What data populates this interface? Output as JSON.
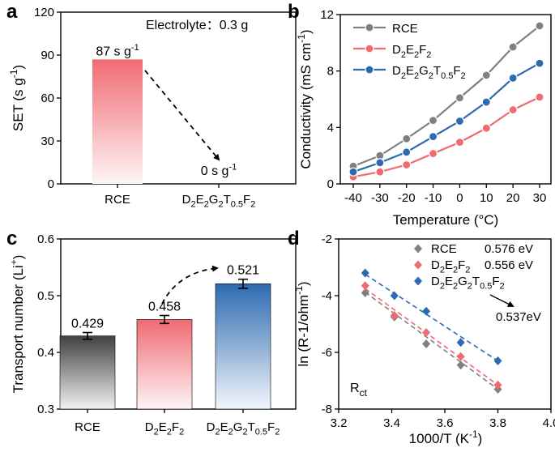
{
  "chart_data": [
    {
      "id": "a",
      "type": "bar",
      "panel_label": "a",
      "ylabel": "SET (s g-1)",
      "ylim": [
        0,
        120
      ],
      "yticks": [
        "0",
        "30",
        "60",
        "90",
        "120"
      ],
      "categories": [
        "RCE",
        "D2E2G2T0.5F2"
      ],
      "values": [
        87,
        0
      ],
      "data_labels": [
        "87 s g",
        "0 s g"
      ],
      "unit_superscript": "-1",
      "annotation": "Electrolyte：0.3 g"
    },
    {
      "id": "b",
      "type": "line",
      "panel_label": "b",
      "xlabel": "Temperature (°C)",
      "ylabel": "Conductivity (mS cm-1)",
      "x": [
        -40,
        -30,
        -20,
        -10,
        0,
        10,
        20,
        30
      ],
      "xticks": [
        "-40",
        "-30",
        "-20",
        "-10",
        "0",
        "10",
        "20",
        "30"
      ],
      "ylim": [
        0,
        12
      ],
      "yticks": [
        "0",
        "4",
        "8",
        "12"
      ],
      "series": [
        {
          "name": "RCE",
          "color": "#808080",
          "values": [
            1.25,
            2.0,
            3.2,
            4.5,
            6.1,
            7.7,
            9.7,
            11.2
          ]
        },
        {
          "name": "D2E2F2",
          "color": "#ef6b72",
          "values": [
            0.5,
            0.85,
            1.35,
            2.15,
            2.95,
            3.95,
            5.25,
            6.15
          ]
        },
        {
          "name": "D2E2G2T0.5F2",
          "color": "#2d6ab1",
          "values": [
            0.85,
            1.5,
            2.25,
            3.35,
            4.45,
            5.8,
            7.5,
            8.55
          ]
        }
      ]
    },
    {
      "id": "c",
      "type": "bar",
      "panel_label": "c",
      "ylabel": "Transport number (Li+)",
      "ylim": [
        0.3,
        0.6
      ],
      "yticks": [
        "0.3",
        "0.4",
        "0.5",
        "0.6"
      ],
      "categories": [
        "RCE",
        "D2E2F2",
        "D2E2G2T0.5F2"
      ],
      "values": [
        0.429,
        0.458,
        0.521
      ],
      "errors": [
        0.006,
        0.007,
        0.008
      ],
      "data_labels": [
        "0.429",
        "0.458",
        "0.521"
      ]
    },
    {
      "id": "d",
      "type": "scatter",
      "panel_label": "d",
      "xlabel": "1000/T (K-1)",
      "ylabel": "ln (R-1/ohm-1)",
      "xlim": [
        3.2,
        4.0
      ],
      "xticks": [
        "3.2",
        "3.4",
        "3.6",
        "3.8",
        "4.0"
      ],
      "ylim": [
        -8,
        -2
      ],
      "yticks": [
        "-8",
        "-6",
        "-4",
        "-2"
      ],
      "annotation": "Rct",
      "arrow_label": "0.537eV",
      "series": [
        {
          "name": "RCE",
          "energy": "0.576 eV",
          "color": "#808080",
          "x": [
            3.3,
            3.41,
            3.53,
            3.66,
            3.8
          ],
          "y": [
            -3.9,
            -4.75,
            -5.7,
            -6.45,
            -7.3
          ],
          "fit": [
            [
              3.3,
              -3.88
            ],
            [
              3.8,
              -7.3
            ]
          ]
        },
        {
          "name": "D2E2F2",
          "energy": "0.556 eV",
          "color": "#ef6b72",
          "x": [
            3.3,
            3.41,
            3.53,
            3.66,
            3.8
          ],
          "y": [
            -3.65,
            -4.7,
            -5.3,
            -6.15,
            -7.15
          ],
          "fit": [
            [
              3.3,
              -3.75
            ],
            [
              3.8,
              -7.15
            ]
          ]
        },
        {
          "name": "D2E2G2T0.5F2",
          "energy": "",
          "color": "#2d6ab1",
          "x": [
            3.3,
            3.41,
            3.53,
            3.66,
            3.8
          ],
          "y": [
            -3.2,
            -4.0,
            -4.55,
            -5.65,
            -6.3
          ],
          "fit": [
            [
              3.3,
              -3.25
            ],
            [
              3.8,
              -6.3
            ]
          ]
        }
      ]
    }
  ]
}
